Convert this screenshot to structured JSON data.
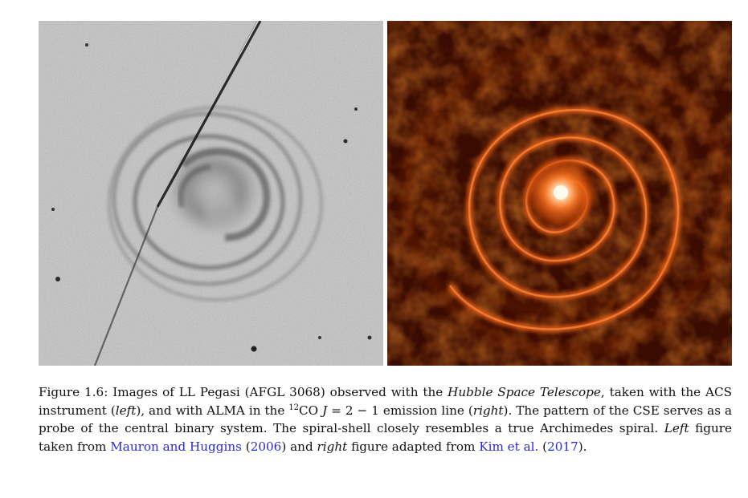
{
  "figure": {
    "left_panel": {
      "image_semantic": "hubble-acs-grayscale-shells-image"
    },
    "right_panel": {
      "image_semantic": "alma-12co-orange-spiral-image"
    },
    "caption": {
      "label": "Figure 1.6:",
      "t1": "Images of LL Pegasi (AFGL 3068) observed with the",
      "telescope": "Hubble Space Telescope",
      "t2": ", taken with the ACS instrument (",
      "left": "left",
      "t3": "), and with ALMA in the",
      "isotope": "12",
      "t4": "CO",
      "j_symbol": "J",
      "t5": " = 2 − 1 emission line (",
      "right": "right",
      "t6": "). The pattern of the CSE serves as a probe of the central binary system. The spiral-shell closely resembles a true Archimedes spiral.",
      "left_word": "Left",
      "t7": "figure taken from",
      "ref1_authors": "Mauron and Huggins",
      "ref1_year_open": "(",
      "ref1_year": "2006",
      "ref1_year_close": ")",
      "t8": "and",
      "right_word": "right",
      "t9": "figure adapted from",
      "ref2_authors": "Kim et al.",
      "ref2_year_open": "(",
      "ref2_year": "2017",
      "ref2_year_close": ")."
    },
    "colors": {
      "link": "#2a2ad4",
      "left_background": "#bdbdbd",
      "right_background": "#2a0700",
      "right_emission": "#ff6a1a",
      "right_core": "#fff6e0"
    }
  }
}
